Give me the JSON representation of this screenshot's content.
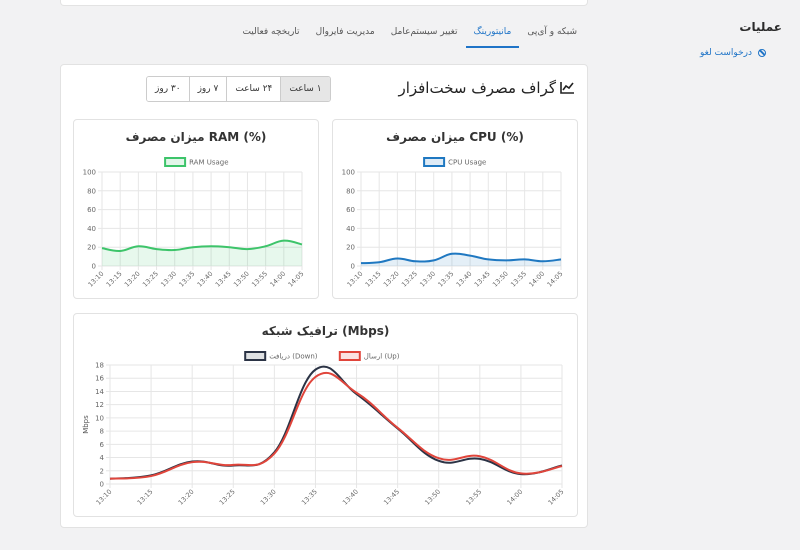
{
  "sidebar": {
    "title": "عملیات",
    "cancel_link": "درخواست لغو"
  },
  "tabs": [
    {
      "label": "شبکه و آی‌پی",
      "active": false
    },
    {
      "label": "مانیتورینگ",
      "active": true
    },
    {
      "label": "تغییر سیستم‌عامل",
      "active": false
    },
    {
      "label": "مدیریت فایروال",
      "active": false
    },
    {
      "label": "تاریخچه فعالیت",
      "active": false
    }
  ],
  "main": {
    "title": "گراف مصرف سخت‌افزار",
    "ranges": [
      {
        "label": "۱ ساعت",
        "active": true
      },
      {
        "label": "۲۴ ساعت",
        "active": false
      },
      {
        "label": "۷ روز",
        "active": false
      },
      {
        "label": "۳۰ روز",
        "active": false
      }
    ]
  },
  "colors": {
    "accent": "#1f74c7",
    "cpu": "#1f78c1",
    "ram": "#3dc46a",
    "down": "#2b3345",
    "up": "#e0453b"
  },
  "chart_data": [
    {
      "type": "area",
      "title": "میزان مصرف CPU (%)",
      "categories": [
        "13:10",
        "13:15",
        "13:20",
        "13:25",
        "13:30",
        "13:35",
        "13:40",
        "13:45",
        "13:50",
        "13:55",
        "14:00",
        "14:05"
      ],
      "series": [
        {
          "name": "CPU Usage",
          "values": [
            3,
            4,
            8,
            5,
            6,
            13,
            11,
            7,
            6,
            7,
            5,
            7
          ]
        }
      ],
      "ylim": [
        0,
        100
      ],
      "yticks": [
        0,
        20,
        40,
        60,
        80,
        100
      ],
      "grid": true,
      "legend": "top"
    },
    {
      "type": "area",
      "title": "میزان مصرف RAM (%)",
      "categories": [
        "13:10",
        "13:15",
        "13:20",
        "13:25",
        "13:30",
        "13:35",
        "13:40",
        "13:45",
        "13:50",
        "13:55",
        "14:00",
        "14:05"
      ],
      "series": [
        {
          "name": "RAM Usage",
          "values": [
            19,
            16,
            21,
            18,
            17,
            20,
            21,
            20,
            18,
            21,
            27,
            23
          ]
        }
      ],
      "ylim": [
        0,
        100
      ],
      "yticks": [
        0,
        20,
        40,
        60,
        80,
        100
      ],
      "grid": true,
      "legend": "top"
    },
    {
      "type": "line",
      "title": "ترافیک شبکه (Mbps)",
      "ylabel": "Mbps",
      "categories": [
        "13:10",
        "13:15",
        "13:20",
        "13:25",
        "13:30",
        "13:35",
        "13:40",
        "13:45",
        "13:50",
        "13:55",
        "14:00",
        "14:05"
      ],
      "series": [
        {
          "name": "دریافت (Down)",
          "values": [
            0.8,
            1.3,
            3.4,
            2.8,
            4.8,
            17.3,
            13.6,
            8.4,
            3.5,
            3.8,
            1.5,
            2.8
          ]
        },
        {
          "name": "ارسال (Up)",
          "values": [
            0.8,
            1.2,
            3.3,
            2.9,
            4.6,
            16.2,
            13.8,
            8.5,
            3.9,
            4.2,
            1.6,
            2.7
          ]
        }
      ],
      "ylim": [
        0,
        18
      ],
      "yticks": [
        0,
        2,
        4,
        6,
        8,
        10,
        12,
        14,
        16,
        18
      ],
      "grid": true,
      "legend": "top"
    }
  ]
}
